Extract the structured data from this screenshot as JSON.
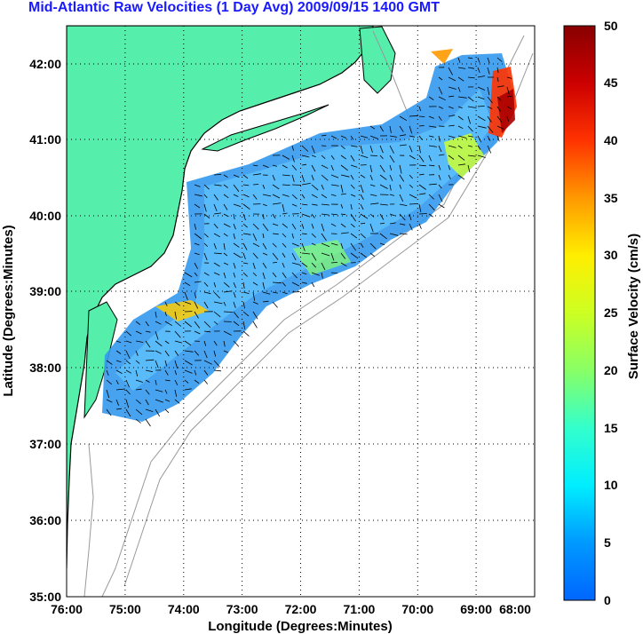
{
  "title": "Mid-Atlantic Raw Velocities (1 Day Avg) 2009/09/15 1400 GMT",
  "x_axis": {
    "label": "Longitude (Degrees:Minutes)",
    "ticks": [
      "76:00",
      "75:00",
      "74:00",
      "73:00",
      "72:00",
      "71:00",
      "70:00",
      "69:00",
      "68:00"
    ]
  },
  "y_axis": {
    "label": "Latitude (Degrees:Minutes)",
    "ticks": [
      "35:00",
      "36:00",
      "37:00",
      "38:00",
      "39:00",
      "40:00",
      "41:00",
      "42:00"
    ]
  },
  "colorbar": {
    "label": "Surface Velocity (cm/s)",
    "ticks": [
      "0",
      "5",
      "10",
      "15",
      "20",
      "25",
      "30",
      "35",
      "40",
      "45",
      "50"
    ],
    "colors": [
      "#0066ff",
      "#00ccff",
      "#22ffdd",
      "#66ff66",
      "#ccff22",
      "#ffff00",
      "#ffbb00",
      "#ff7700",
      "#ff2200",
      "#cc0000",
      "#880000"
    ]
  },
  "land_color": "#55eeaa",
  "ocean_color": "#ffffff"
}
